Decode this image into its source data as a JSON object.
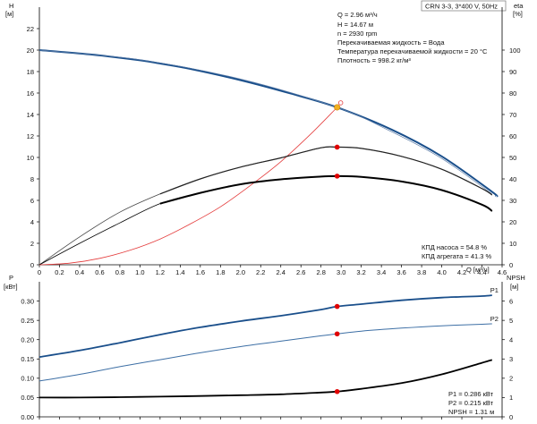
{
  "chart_data": [
    {
      "type": "line",
      "panel": "top",
      "title": "CRN 3-3, 3*400 V, 50Hz",
      "xlabel": "Q [м³/ч]",
      "ylabel_left": "H",
      "ylabel_left_unit": "[м]",
      "ylabel_right": "eta",
      "ylabel_right_unit": "[%]",
      "xlim": [
        0,
        4.6
      ],
      "ylim_left": [
        0,
        24
      ],
      "ylim_right": [
        0,
        120
      ],
      "x_ticks": [
        "0",
        "0.2",
        "0.4",
        "0.6",
        "0.8",
        "1.0",
        "1.2",
        "1.4",
        "1.6",
        "1.8",
        "2.0",
        "2.2",
        "2.4",
        "2.6",
        "2.8",
        "3.0",
        "3.2",
        "3.4",
        "3.6",
        "3.8",
        "4.0",
        "4.2",
        "4.4",
        "4.6"
      ],
      "y_ticks_left": [
        "0",
        "2",
        "4",
        "6",
        "8",
        "10",
        "12",
        "14",
        "16",
        "18",
        "20",
        "22"
      ],
      "y_ticks_right": [
        "0",
        "10",
        "20",
        "30",
        "40",
        "50",
        "60",
        "70",
        "80",
        "90",
        "100"
      ],
      "grid": false,
      "series": [
        {
          "key": "H",
          "axis": "left",
          "color": "#1a4f8b",
          "x": [
            0,
            0.5,
            1.0,
            1.2,
            1.5,
            2.0,
            2.5,
            2.96,
            3.5,
            4.0,
            4.5,
            4.54
          ],
          "values": [
            20.0,
            19.6,
            19.05,
            18.75,
            18.25,
            17.2,
            15.95,
            14.67,
            12.6,
            10.1,
            6.8,
            6.4
          ]
        },
        {
          "key": "H_low",
          "axis": "left",
          "color": "#5b7ca8",
          "x": [
            0,
            1.0,
            2.0,
            2.96,
            3.5,
            4.0,
            4.5
          ],
          "values": [
            20.0,
            19.1,
            17.3,
            14.67,
            12.4,
            9.9,
            6.6
          ]
        },
        {
          "key": "eta_pump",
          "axis": "right",
          "color": "#444444",
          "x": [
            0,
            0.4,
            0.8,
            1.2,
            1.6,
            2.0,
            2.4,
            2.8,
            2.96,
            3.2,
            3.6,
            4.0,
            4.4,
            4.5
          ],
          "values": [
            0,
            13,
            24.5,
            33,
            40,
            45.5,
            49.8,
            54.5,
            54.8,
            54.2,
            50.5,
            44.5,
            35.5,
            32.5
          ]
        },
        {
          "key": "eta_unit",
          "axis": "right",
          "color": "#000000",
          "x": [
            0,
            0.4,
            0.8,
            1.2,
            1.6,
            2.0,
            2.4,
            2.8,
            2.96,
            3.2,
            3.6,
            4.0,
            4.4,
            4.5
          ],
          "values": [
            0,
            10,
            19.5,
            28.5,
            33.5,
            37.5,
            39.8,
            41.1,
            41.3,
            40.9,
            38.8,
            34.8,
            28,
            25
          ]
        },
        {
          "key": "system",
          "axis": "left",
          "color": "#e43c3c",
          "x": [
            0,
            0.3,
            0.6,
            0.9,
            1.2,
            1.5,
            1.8,
            2.1,
            2.4,
            2.7,
            2.96
          ],
          "values": [
            0,
            0.15,
            0.6,
            1.35,
            2.4,
            3.8,
            5.4,
            7.4,
            9.6,
            12.2,
            14.67
          ]
        }
      ],
      "markers": [
        {
          "key": "duty_point",
          "x": 2.96,
          "y": 14.67,
          "axis": "left",
          "color": "#f0b020"
        },
        {
          "key": "eta_pump_point",
          "x": 2.96,
          "y": 54.8,
          "axis": "right",
          "color": "#e00000"
        },
        {
          "key": "eta_unit_point",
          "x": 2.96,
          "y": 41.3,
          "axis": "right",
          "color": "#e00000"
        }
      ],
      "info_lines": [
        "Q = 2.96 м³/ч",
        "H = 14.67 м",
        "n = 2930 rpm",
        "Перекачиваемая жидкость = Вода",
        "Температура перекачиваемой жидкости = 20 °C",
        "Плотность = 998.2 кг/м³"
      ],
      "eff_lines": [
        "КПД насоса = 54.8 %",
        "КПД агрегата = 41.3 %"
      ]
    },
    {
      "type": "line",
      "panel": "bottom",
      "ylabel_left": "P",
      "ylabel_left_unit": "[кВт]",
      "ylabel_right": "NPSH",
      "ylabel_right_unit": "[м]",
      "xlim": [
        0,
        4.6
      ],
      "ylim_left": [
        0,
        0.35
      ],
      "ylim_right": [
        0,
        7
      ],
      "y_ticks_left": [
        "0.00",
        "0.05",
        "0.10",
        "0.15",
        "0.20",
        "0.25",
        "0.30"
      ],
      "y_ticks_right": [
        "0",
        "1",
        "2",
        "3",
        "4",
        "5",
        "6"
      ],
      "series": [
        {
          "key": "P1",
          "name": "P1",
          "axis": "left",
          "color": "#1a4f8b",
          "x": [
            0,
            0.4,
            0.8,
            1.2,
            1.6,
            2.0,
            2.4,
            2.8,
            2.96,
            3.2,
            3.6,
            4.0,
            4.4,
            4.5
          ],
          "values": [
            0.155,
            0.172,
            0.192,
            0.213,
            0.232,
            0.248,
            0.262,
            0.278,
            0.286,
            0.292,
            0.302,
            0.309,
            0.313,
            0.315
          ]
        },
        {
          "key": "P2",
          "name": "P2",
          "axis": "left",
          "color": "#3d6fa5",
          "x": [
            0,
            0.4,
            0.8,
            1.2,
            1.6,
            2.0,
            2.4,
            2.8,
            2.96,
            3.2,
            3.6,
            4.0,
            4.4,
            4.5
          ],
          "values": [
            0.093,
            0.11,
            0.13,
            0.148,
            0.166,
            0.182,
            0.196,
            0.21,
            0.215,
            0.222,
            0.23,
            0.236,
            0.24,
            0.241
          ]
        },
        {
          "key": "NPSH",
          "axis": "right",
          "color": "#000000",
          "x": [
            0,
            0.4,
            0.8,
            1.2,
            1.6,
            2.0,
            2.4,
            2.8,
            2.96,
            3.2,
            3.6,
            4.0,
            4.4,
            4.5
          ],
          "values": [
            1.0,
            1.0,
            1.02,
            1.05,
            1.08,
            1.12,
            1.17,
            1.26,
            1.31,
            1.45,
            1.75,
            2.2,
            2.8,
            2.95
          ]
        }
      ],
      "markers": [
        {
          "key": "P1_point",
          "x": 2.96,
          "y": 0.286,
          "axis": "left",
          "color": "#e00000"
        },
        {
          "key": "P2_point",
          "x": 2.96,
          "y": 0.215,
          "axis": "left",
          "color": "#e00000"
        },
        {
          "key": "NPSH_point",
          "x": 2.96,
          "y": 1.31,
          "axis": "right",
          "color": "#e00000"
        }
      ],
      "info_lines": [
        "P1 = 0.286 кВт",
        "P2 = 0.215 кВт",
        "NPSH = 1.31 м"
      ]
    }
  ]
}
